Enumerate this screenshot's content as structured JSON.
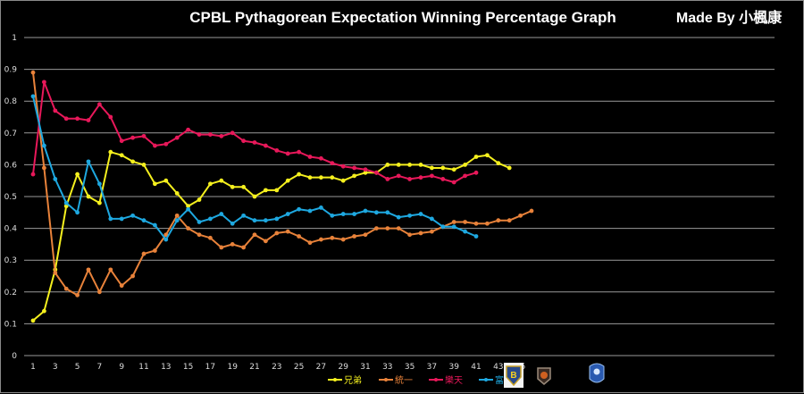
{
  "chart_data": {
    "type": "line",
    "title": "CPBL Pythagorean Expectation Winning Percentage Graph",
    "credit": "Made By 小楓康",
    "xlabel": "",
    "ylabel": "",
    "ylim": [
      0,
      1
    ],
    "xlim": [
      1,
      46
    ],
    "grid": true,
    "y_ticks": [
      "0",
      "0.1",
      "0.2",
      "0.3",
      "0.4",
      "0.5",
      "0.6",
      "0.7",
      "0.8",
      "0.9",
      "1"
    ],
    "x_ticks": [
      "1",
      "3",
      "5",
      "7",
      "9",
      "11",
      "13",
      "15",
      "17",
      "19",
      "21",
      "23",
      "25",
      "27",
      "29",
      "31",
      "33",
      "35",
      "37",
      "39",
      "41",
      "43",
      "45"
    ],
    "legend_position": "bottom-center",
    "logos": [
      "team-logo-brothers",
      "team-logo-uni-lions",
      "team-logo-fubon"
    ],
    "series": [
      {
        "name": "兄弟",
        "color": "#f5f01e",
        "values": [
          0.11,
          0.14,
          0.27,
          0.47,
          0.57,
          0.5,
          0.48,
          0.64,
          0.63,
          0.61,
          0.6,
          0.54,
          0.55,
          0.51,
          0.47,
          0.49,
          0.54,
          0.55,
          0.53,
          0.53,
          0.5,
          0.52,
          0.52,
          0.55,
          0.57,
          0.56,
          0.56,
          0.56,
          0.55,
          0.565,
          0.575,
          0.575,
          0.6,
          0.6,
          0.6,
          0.6,
          0.59,
          0.59,
          0.585,
          0.6,
          0.625,
          0.63,
          0.605,
          0.59
        ]
      },
      {
        "name": "統一",
        "color": "#e8823a",
        "values": [
          0.89,
          0.59,
          0.26,
          0.21,
          0.19,
          0.27,
          0.2,
          0.27,
          0.22,
          0.25,
          0.32,
          0.33,
          0.38,
          0.44,
          0.4,
          0.38,
          0.37,
          0.34,
          0.35,
          0.34,
          0.38,
          0.36,
          0.385,
          0.39,
          0.375,
          0.355,
          0.365,
          0.37,
          0.365,
          0.375,
          0.38,
          0.4,
          0.4,
          0.4,
          0.38,
          0.385,
          0.39,
          0.405,
          0.42,
          0.42,
          0.415,
          0.415,
          0.425,
          0.425,
          0.44,
          0.455
        ]
      },
      {
        "name": "樂天",
        "color": "#e8185a",
        "values": [
          0.57,
          0.86,
          0.77,
          0.745,
          0.745,
          0.74,
          0.79,
          0.75,
          0.675,
          0.685,
          0.69,
          0.66,
          0.665,
          0.685,
          0.71,
          0.695,
          0.695,
          0.69,
          0.7,
          0.675,
          0.67,
          0.66,
          0.645,
          0.635,
          0.64,
          0.625,
          0.62,
          0.605,
          0.595,
          0.59,
          0.585,
          0.575,
          0.555,
          0.565,
          0.555,
          0.56,
          0.565,
          0.555,
          0.545,
          0.565,
          0.575
        ]
      },
      {
        "name": "富邦",
        "color": "#1ea8e0",
        "values": [
          0.815,
          0.66,
          0.555,
          0.48,
          0.45,
          0.61,
          0.54,
          0.43,
          0.43,
          0.44,
          0.425,
          0.41,
          0.365,
          0.425,
          0.46,
          0.42,
          0.43,
          0.445,
          0.415,
          0.44,
          0.425,
          0.425,
          0.43,
          0.445,
          0.46,
          0.455,
          0.465,
          0.44,
          0.445,
          0.445,
          0.455,
          0.45,
          0.45,
          0.435,
          0.44,
          0.445,
          0.43,
          0.405,
          0.405,
          0.39,
          0.375
        ]
      }
    ]
  }
}
